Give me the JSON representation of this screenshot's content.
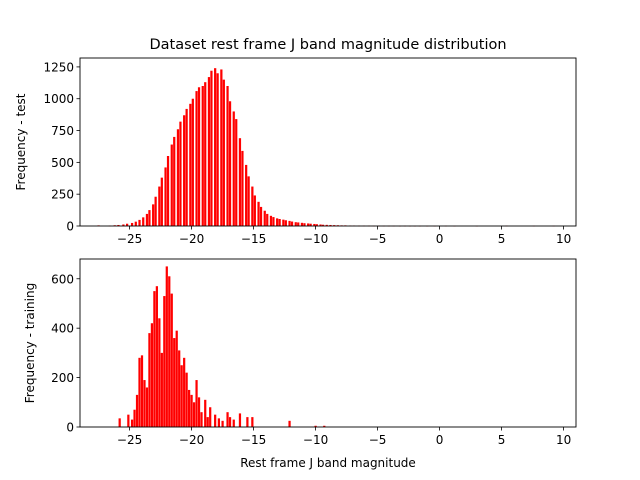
{
  "chart_data": [
    {
      "type": "bar",
      "title": "Dataset rest frame J band magnitude distribution",
      "xlabel": "",
      "ylabel": "Frequency - test",
      "xlim": [
        -29,
        11
      ],
      "ylim": [
        0,
        1320
      ],
      "xticks": [
        -25,
        -20,
        -15,
        -10,
        -5,
        0,
        5,
        10
      ],
      "xtick_labels": [
        "−25",
        "−20",
        "−15",
        "−10",
        "−5",
        "0",
        "5",
        "10"
      ],
      "yticks": [
        0,
        250,
        500,
        750,
        1000,
        1250
      ],
      "ytick_labels": [
        "0",
        "250",
        "500",
        "750",
        "1000",
        "1250"
      ],
      "color": "#ff0000",
      "grid": false,
      "bin_width": 0.18,
      "bins": [
        [
          -27.5,
          5
        ],
        [
          -26.6,
          3
        ],
        [
          -26.2,
          6
        ],
        [
          -25.9,
          8
        ],
        [
          -25.5,
          12
        ],
        [
          -25.2,
          18
        ],
        [
          -24.8,
          24
        ],
        [
          -24.5,
          34
        ],
        [
          -24.2,
          48
        ],
        [
          -23.9,
          68
        ],
        [
          -23.6,
          95
        ],
        [
          -23.4,
          125
        ],
        [
          -23.1,
          170
        ],
        [
          -22.9,
          230
        ],
        [
          -22.6,
          310
        ],
        [
          -22.4,
          380
        ],
        [
          -22.1,
          460
        ],
        [
          -21.9,
          550
        ],
        [
          -21.6,
          640
        ],
        [
          -21.4,
          700
        ],
        [
          -21.1,
          760
        ],
        [
          -20.9,
          820
        ],
        [
          -20.6,
          870
        ],
        [
          -20.4,
          920
        ],
        [
          -20.1,
          960
        ],
        [
          -19.9,
          1000
        ],
        [
          -19.6,
          1060
        ],
        [
          -19.4,
          1090
        ],
        [
          -19.1,
          1100
        ],
        [
          -18.9,
          1130
        ],
        [
          -18.6,
          1170
        ],
        [
          -18.4,
          1220
        ],
        [
          -18.1,
          1240
        ],
        [
          -17.9,
          1200
        ],
        [
          -17.6,
          1230
        ],
        [
          -17.4,
          1150
        ],
        [
          -17.1,
          1100
        ],
        [
          -16.9,
          980
        ],
        [
          -16.6,
          900
        ],
        [
          -16.4,
          840
        ],
        [
          -16.1,
          690
        ],
        [
          -15.9,
          590
        ],
        [
          -15.6,
          480
        ],
        [
          -15.4,
          390
        ],
        [
          -15.1,
          310
        ],
        [
          -14.9,
          240
        ],
        [
          -14.6,
          190
        ],
        [
          -14.4,
          150
        ],
        [
          -14.1,
          120
        ],
        [
          -13.9,
          95
        ],
        [
          -13.6,
          80
        ],
        [
          -13.4,
          70
        ],
        [
          -13.1,
          60
        ],
        [
          -12.9,
          55
        ],
        [
          -12.6,
          50
        ],
        [
          -12.4,
          45
        ],
        [
          -12.1,
          40
        ],
        [
          -11.9,
          35
        ],
        [
          -11.6,
          30
        ],
        [
          -11.4,
          28
        ],
        [
          -11.1,
          25
        ],
        [
          -10.9,
          22
        ],
        [
          -10.6,
          20
        ],
        [
          -10.4,
          18
        ],
        [
          -10.1,
          16
        ],
        [
          -9.9,
          14
        ],
        [
          -9.6,
          12
        ],
        [
          -9.4,
          10
        ],
        [
          -9.1,
          9
        ],
        [
          -8.8,
          8
        ],
        [
          -8.5,
          7
        ],
        [
          -8.2,
          6
        ],
        [
          -7.9,
          5
        ],
        [
          -7.6,
          5
        ],
        [
          -7.2,
          4
        ],
        [
          -6.9,
          4
        ],
        [
          -6.5,
          3
        ],
        [
          -6.1,
          3
        ],
        [
          -5.7,
          3
        ],
        [
          -5.3,
          2
        ],
        [
          -4.9,
          2
        ],
        [
          -4.5,
          2
        ],
        [
          -4.1,
          2
        ],
        [
          -3.7,
          2
        ],
        [
          -3.2,
          1
        ],
        [
          -2.8,
          2
        ],
        [
          -2.4,
          1
        ],
        [
          -2.0,
          1
        ],
        [
          -1.6,
          1
        ],
        [
          -1.0,
          1
        ],
        [
          -0.4,
          1
        ],
        [
          0.5,
          2
        ],
        [
          1.2,
          1
        ],
        [
          3.0,
          1
        ],
        [
          5.4,
          3
        ],
        [
          7.6,
          2
        ],
        [
          9.2,
          2
        ]
      ]
    },
    {
      "type": "bar",
      "title": "",
      "xlabel": "Rest frame J band magnitude",
      "ylabel": "Frequency - training",
      "xlim": [
        -29,
        11
      ],
      "ylim": [
        0,
        680
      ],
      "xticks": [
        -25,
        -20,
        -15,
        -10,
        -5,
        0,
        5,
        10
      ],
      "xtick_labels": [
        "−25",
        "−20",
        "−15",
        "−10",
        "−5",
        "0",
        "5",
        "10"
      ],
      "yticks": [
        0,
        200,
        400,
        600
      ],
      "ytick_labels": [
        "0",
        "200",
        "400",
        "600"
      ],
      "color": "#ff0000",
      "grid": false,
      "bin_width": 0.18,
      "bins": [
        [
          -25.8,
          35
        ],
        [
          -25.1,
          50
        ],
        [
          -24.8,
          30
        ],
        [
          -24.6,
          70
        ],
        [
          -24.4,
          130
        ],
        [
          -24.2,
          280
        ],
        [
          -24.0,
          290
        ],
        [
          -23.8,
          190
        ],
        [
          -23.6,
          160
        ],
        [
          -23.4,
          380
        ],
        [
          -23.2,
          420
        ],
        [
          -23.0,
          550
        ],
        [
          -22.8,
          570
        ],
        [
          -22.6,
          440
        ],
        [
          -22.4,
          300
        ],
        [
          -22.2,
          530
        ],
        [
          -22.0,
          650
        ],
        [
          -21.8,
          610
        ],
        [
          -21.6,
          540
        ],
        [
          -21.4,
          360
        ],
        [
          -21.2,
          390
        ],
        [
          -21.0,
          310
        ],
        [
          -20.8,
          250
        ],
        [
          -20.6,
          280
        ],
        [
          -20.4,
          220
        ],
        [
          -20.2,
          150
        ],
        [
          -20.0,
          130
        ],
        [
          -19.8,
          100
        ],
        [
          -19.6,
          190
        ],
        [
          -19.4,
          120
        ],
        [
          -19.2,
          60
        ],
        [
          -18.9,
          110
        ],
        [
          -18.7,
          40
        ],
        [
          -18.5,
          80
        ],
        [
          -18.1,
          50
        ],
        [
          -17.8,
          35
        ],
        [
          -17.5,
          25
        ],
        [
          -17.1,
          60
        ],
        [
          -16.9,
          40
        ],
        [
          -16.6,
          30
        ],
        [
          -16.1,
          55
        ],
        [
          -15.5,
          40
        ],
        [
          -15.1,
          40
        ],
        [
          -12.1,
          25
        ],
        [
          -10.0,
          5
        ],
        [
          -9.3,
          5
        ]
      ]
    }
  ]
}
